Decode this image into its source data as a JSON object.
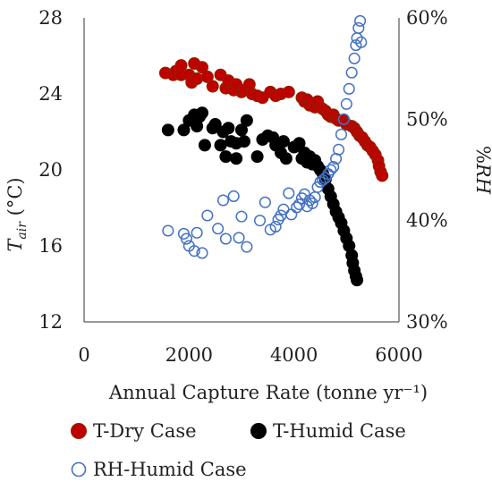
{
  "chart_data": {
    "type": "scatter",
    "xlabel": "Annual Capture Rate (tonne yr⁻¹)",
    "ylabel": "T_air (°C)",
    "ylabel_main": "T",
    "ylabel_sub": "air",
    "ylabel_unit": " (°C)",
    "y2label": "%RH",
    "xlim": [
      0,
      6000
    ],
    "ylim": [
      12,
      28
    ],
    "y2lim": [
      30,
      60
    ],
    "xticks": [
      "0",
      "2000",
      "4000",
      "6000"
    ],
    "yticks": [
      "12",
      "16",
      "20",
      "24",
      "28"
    ],
    "y2ticks": [
      "30%",
      "40%",
      "50%",
      "60%"
    ],
    "grid": false,
    "legend_position": "bottom",
    "series": [
      {
        "name": "T-Dry Case",
        "axis": "left",
        "marker": "filled-circle",
        "color": "#c00000",
        "edge": "#8b2500",
        "points": [
          [
            1550,
            25.1
          ],
          [
            1700,
            25.0
          ],
          [
            1750,
            25.2
          ],
          [
            1850,
            25.5
          ],
          [
            1850,
            25.0
          ],
          [
            2000,
            25.0
          ],
          [
            2050,
            24.6
          ],
          [
            2100,
            25.6
          ],
          [
            2150,
            24.8
          ],
          [
            2250,
            25.4
          ],
          [
            2350,
            24.9
          ],
          [
            2450,
            24.4
          ],
          [
            2600,
            25.0
          ],
          [
            2700,
            24.3
          ],
          [
            2750,
            24.7
          ],
          [
            2850,
            24.2
          ],
          [
            2900,
            24.5
          ],
          [
            3000,
            24.1
          ],
          [
            3050,
            24.2
          ],
          [
            3150,
            24.5
          ],
          [
            3200,
            24.0
          ],
          [
            3300,
            23.9
          ],
          [
            3400,
            23.8
          ],
          [
            3550,
            24.1
          ],
          [
            3650,
            23.9
          ],
          [
            3750,
            24.0
          ],
          [
            3900,
            24.1
          ],
          [
            4150,
            23.8
          ],
          [
            4200,
            23.6
          ],
          [
            4250,
            23.7
          ],
          [
            4300,
            23.4
          ],
          [
            4350,
            23.5
          ],
          [
            4400,
            23.3
          ],
          [
            4450,
            23.6
          ],
          [
            4500,
            23.3
          ],
          [
            4550,
            23.2
          ],
          [
            4600,
            23.1
          ],
          [
            4650,
            22.9
          ],
          [
            4700,
            22.8
          ],
          [
            4750,
            22.9
          ],
          [
            4800,
            22.7
          ],
          [
            4850,
            22.6
          ],
          [
            4950,
            22.6
          ],
          [
            5000,
            22.4
          ],
          [
            5100,
            22.3
          ],
          [
            5150,
            22.2
          ],
          [
            5200,
            22.0
          ],
          [
            5250,
            21.8
          ],
          [
            5300,
            21.7
          ],
          [
            5350,
            21.5
          ],
          [
            5400,
            21.3
          ],
          [
            5450,
            21.2
          ],
          [
            5500,
            21.0
          ],
          [
            5550,
            20.8
          ],
          [
            5600,
            20.5
          ],
          [
            5620,
            20.2
          ],
          [
            5650,
            19.9
          ],
          [
            5680,
            19.7
          ]
        ]
      },
      {
        "name": "T-Humid Case",
        "axis": "left",
        "marker": "filled-circle",
        "color": "#000000",
        "edge": "#000000",
        "points": [
          [
            1600,
            22.1
          ],
          [
            1900,
            22.1
          ],
          [
            2000,
            22.6
          ],
          [
            2100,
            22.9
          ],
          [
            2150,
            22.3
          ],
          [
            2200,
            22.8
          ],
          [
            2250,
            23.0
          ],
          [
            2300,
            21.3
          ],
          [
            2450,
            22.2
          ],
          [
            2500,
            22.4
          ],
          [
            2600,
            21.3
          ],
          [
            2650,
            22.0
          ],
          [
            2700,
            20.7
          ],
          [
            2750,
            22.2
          ],
          [
            2800,
            21.5
          ],
          [
            2900,
            21.4
          ],
          [
            2900,
            20.6
          ],
          [
            3000,
            22.1
          ],
          [
            3050,
            21.5
          ],
          [
            3100,
            22.6
          ],
          [
            3300,
            20.7
          ],
          [
            3400,
            21.6
          ],
          [
            3500,
            21.8
          ],
          [
            3600,
            21.7
          ],
          [
            3650,
            21.3
          ],
          [
            3750,
            20.9
          ],
          [
            3800,
            21.5
          ],
          [
            3850,
            20.6
          ],
          [
            4000,
            21.2
          ],
          [
            4100,
            21.4
          ],
          [
            4150,
            20.6
          ],
          [
            4200,
            20.9
          ],
          [
            4250,
            20.4
          ],
          [
            4300,
            20.7
          ],
          [
            4350,
            20.3
          ],
          [
            4400,
            20.5
          ],
          [
            4450,
            20.2
          ],
          [
            4500,
            20.0
          ],
          [
            4550,
            19.8
          ],
          [
            4600,
            19.5
          ],
          [
            4650,
            19.0
          ],
          [
            4700,
            18.6
          ],
          [
            4750,
            18.2
          ],
          [
            4800,
            17.8
          ],
          [
            4850,
            17.5
          ],
          [
            4900,
            17.2
          ],
          [
            4950,
            16.8
          ],
          [
            5000,
            16.4
          ],
          [
            5050,
            16.0
          ],
          [
            5100,
            15.5
          ],
          [
            5120,
            15.1
          ],
          [
            5150,
            14.7
          ],
          [
            5180,
            14.4
          ],
          [
            5200,
            14.2
          ]
        ]
      },
      {
        "name": "RH-Humid Case",
        "axis": "right",
        "marker": "open-circle",
        "color": "#4472c4",
        "edge": "#4472c4",
        "points": [
          [
            1600,
            39.0
          ],
          [
            1900,
            38.7
          ],
          [
            1950,
            38.2
          ],
          [
            2000,
            37.5
          ],
          [
            2100,
            37.0
          ],
          [
            2150,
            38.8
          ],
          [
            2250,
            36.8
          ],
          [
            2350,
            40.5
          ],
          [
            2550,
            39.2
          ],
          [
            2650,
            42.0
          ],
          [
            2700,
            38.2
          ],
          [
            2850,
            42.4
          ],
          [
            2950,
            38.3
          ],
          [
            3000,
            40.4
          ],
          [
            3100,
            37.4
          ],
          [
            3350,
            40.0
          ],
          [
            3450,
            41.8
          ],
          [
            3550,
            39.1
          ],
          [
            3650,
            39.4
          ],
          [
            3700,
            40.1
          ],
          [
            3750,
            40.5
          ],
          [
            3800,
            41.1
          ],
          [
            3900,
            42.7
          ],
          [
            3950,
            40.6
          ],
          [
            4050,
            41.3
          ],
          [
            4100,
            41.6
          ],
          [
            4150,
            42.2
          ],
          [
            4200,
            42.6
          ],
          [
            4250,
            41.4
          ],
          [
            4300,
            42.0
          ],
          [
            4350,
            41.7
          ],
          [
            4400,
            42.3
          ],
          [
            4450,
            43.3
          ],
          [
            4500,
            43.8
          ],
          [
            4550,
            44.0
          ],
          [
            4600,
            44.2
          ],
          [
            4650,
            44.6
          ],
          [
            4700,
            45.0
          ],
          [
            4750,
            45.3
          ],
          [
            4800,
            46.1
          ],
          [
            4850,
            47.0
          ],
          [
            4900,
            48.5
          ],
          [
            4950,
            50.0
          ],
          [
            5000,
            51.5
          ],
          [
            5050,
            53.0
          ],
          [
            5100,
            54.6
          ],
          [
            5150,
            56.0
          ],
          [
            5180,
            57.3
          ],
          [
            5200,
            58.0
          ],
          [
            5230,
            59.0
          ],
          [
            5260,
            59.7
          ],
          [
            5280,
            57.6
          ]
        ]
      }
    ]
  }
}
